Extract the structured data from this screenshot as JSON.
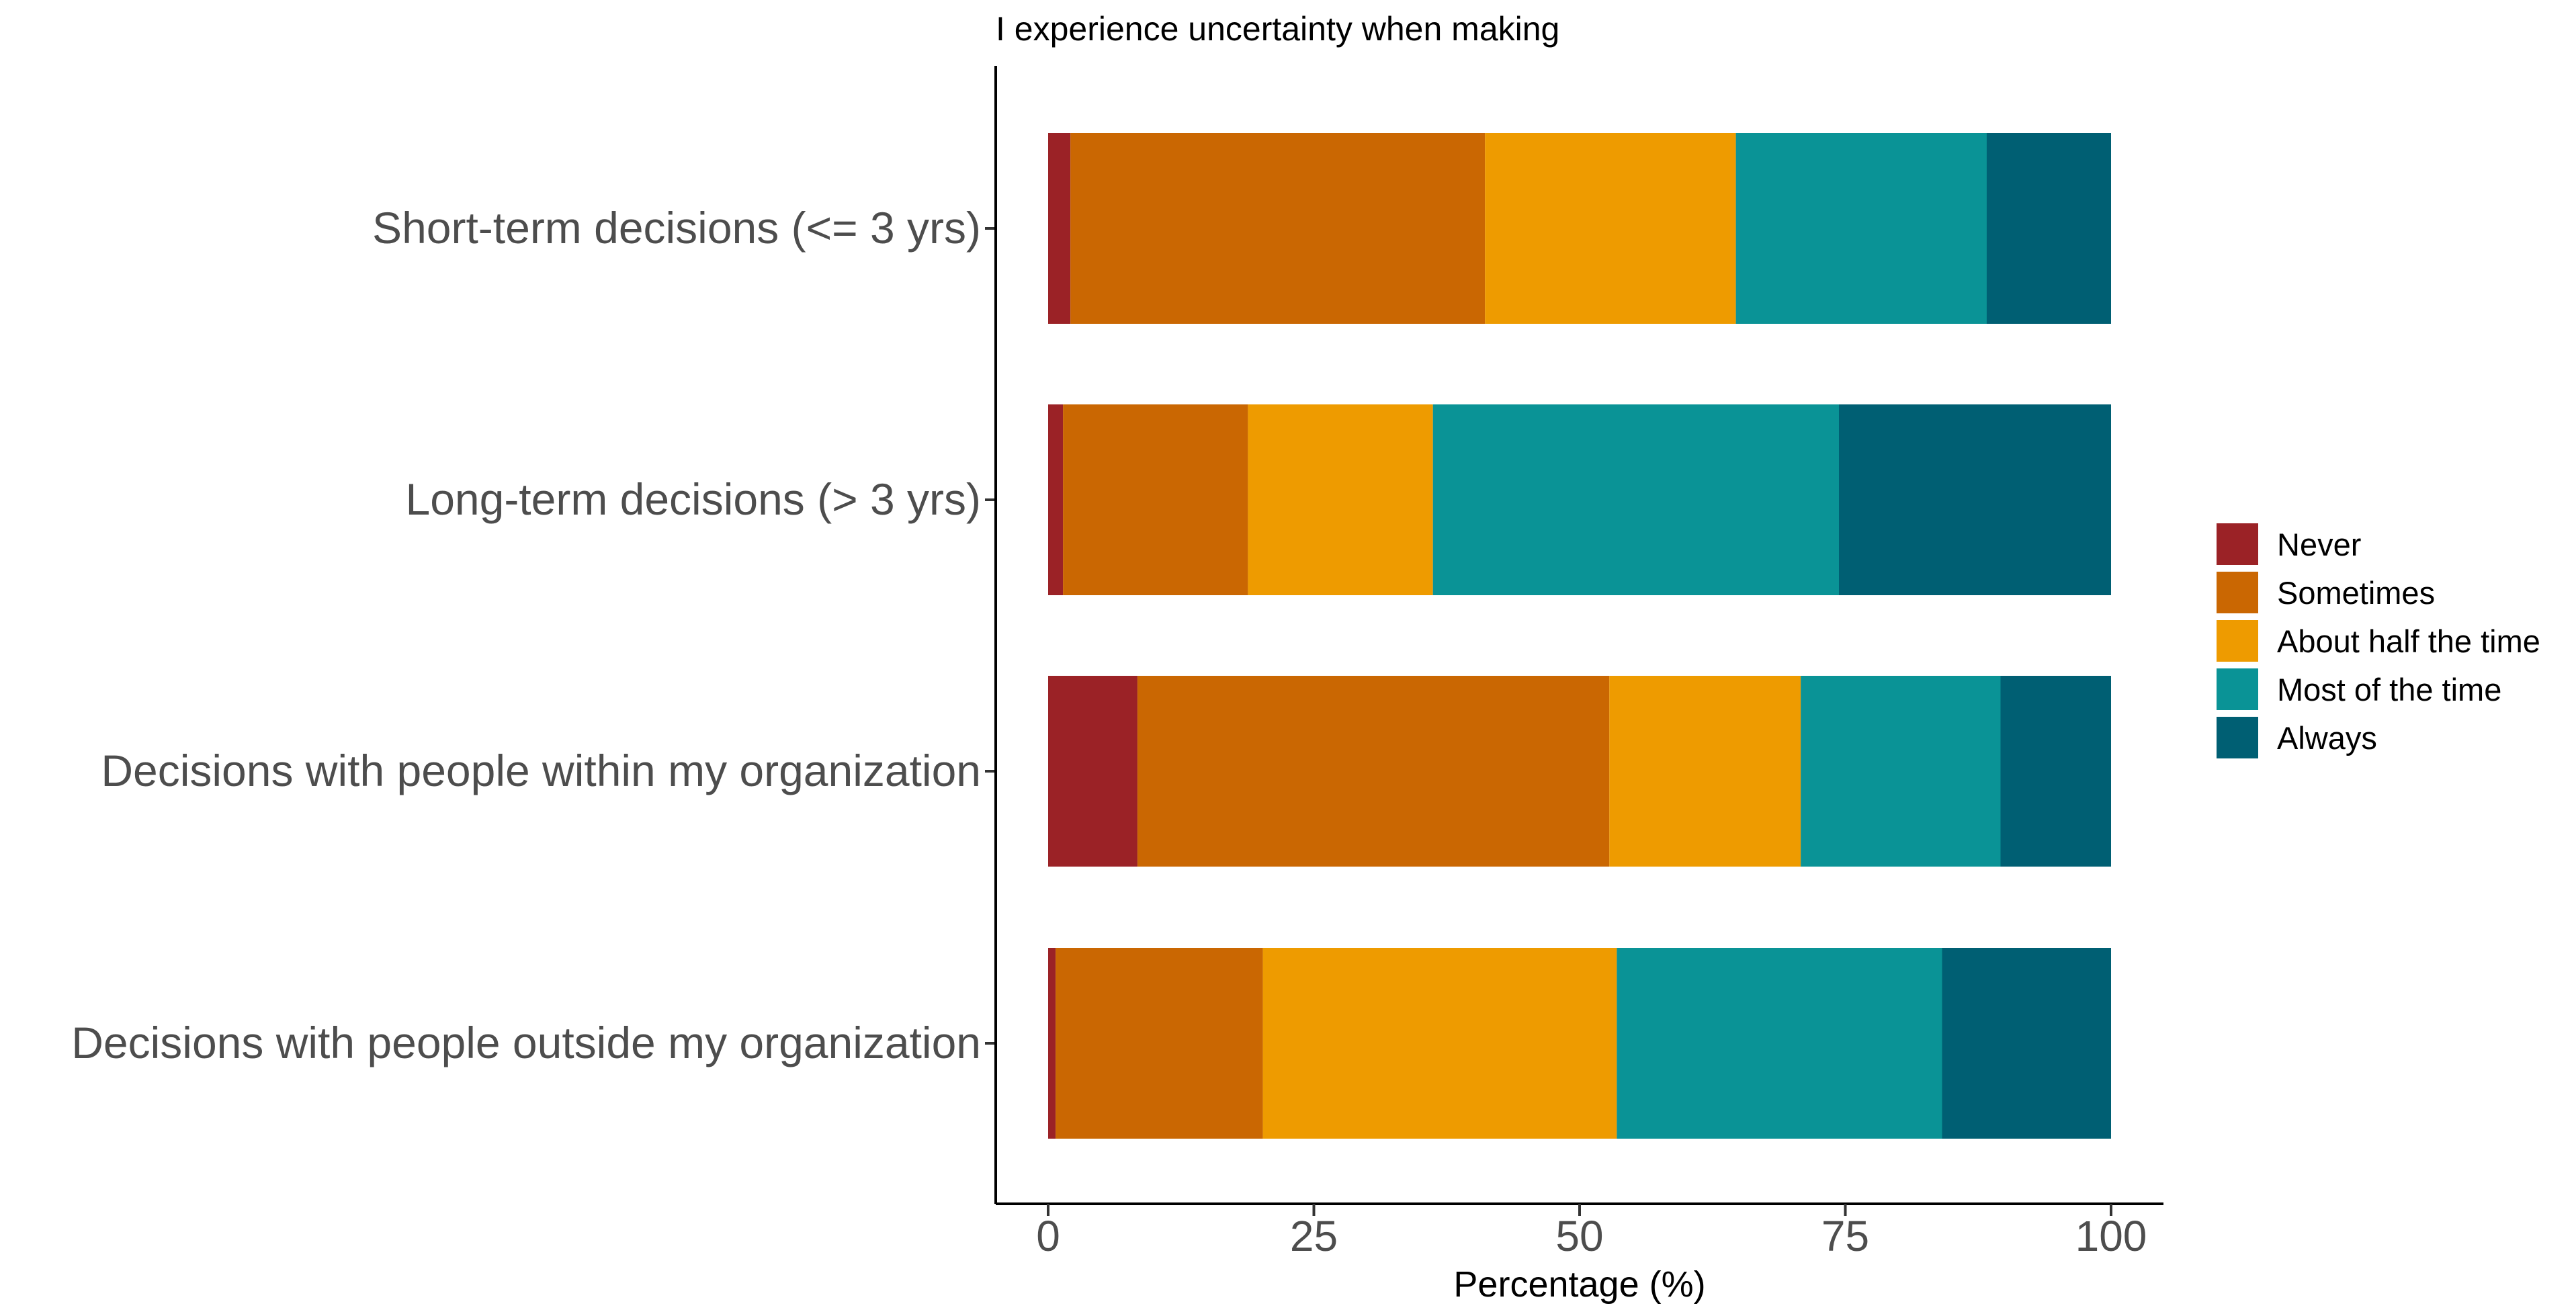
{
  "chart_data": {
    "type": "bar",
    "orientation": "horizontal",
    "stacked": true,
    "title": "I experience uncertainty when making",
    "xlabel": "Percentage (%)",
    "ylabel": "",
    "xlim": [
      0,
      100
    ],
    "xticks": [
      "0",
      "25",
      "50",
      "75",
      "100"
    ],
    "grid": false,
    "legend_position": "right",
    "categories": [
      "Short-term decisions (<= 3 yrs)",
      "Long-term decisions (> 3 yrs)",
      "Decisions with people within my organization",
      "Decisions with people outside my organization"
    ],
    "series": [
      {
        "name": "Never",
        "color": "#9b2226",
        "values": [
          2.1,
          1.4,
          8.4,
          0.7
        ]
      },
      {
        "name": "Sometimes",
        "color": "#ca6702",
        "values": [
          39.0,
          17.4,
          44.4,
          19.5
        ]
      },
      {
        "name": "About half the time",
        "color": "#ee9b00",
        "values": [
          23.6,
          17.4,
          18.0,
          33.3
        ]
      },
      {
        "name": "Most of the time",
        "color": "#0a9396",
        "values": [
          23.6,
          38.2,
          18.8,
          30.6
        ]
      },
      {
        "name": "Always",
        "color": "#005f73",
        "values": [
          11.7,
          25.6,
          10.4,
          15.9
        ]
      }
    ]
  }
}
